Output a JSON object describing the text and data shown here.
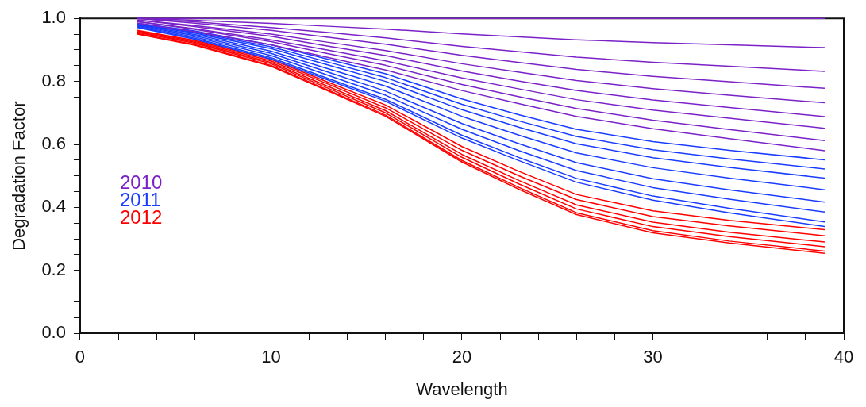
{
  "chart_data": {
    "type": "line",
    "xlabel": "Wavelength",
    "ylabel": "Degradation Factor",
    "x": [
      3,
      6,
      10,
      13,
      16,
      20,
      23,
      26,
      30,
      34,
      39
    ],
    "xlim": [
      0,
      40
    ],
    "xticks": [
      0,
      {
        "value": 2,
        "label": null
      },
      {
        "value": 4,
        "label": null
      },
      {
        "value": 6,
        "label": null
      },
      {
        "value": 8,
        "label": null
      },
      10,
      {
        "value": 12,
        "label": null
      },
      {
        "value": 14,
        "label": null
      },
      {
        "value": 16,
        "label": null
      },
      {
        "value": 18,
        "label": null
      },
      20,
      {
        "value": 22,
        "label": null
      },
      {
        "value": 24,
        "label": null
      },
      {
        "value": 26,
        "label": null
      },
      {
        "value": 28,
        "label": null
      },
      30,
      {
        "value": 32,
        "label": null
      },
      {
        "value": 34,
        "label": null
      },
      {
        "value": 36,
        "label": null
      },
      {
        "value": 38,
        "label": null
      },
      40
    ],
    "ylim": [
      0,
      1
    ],
    "yticks": [
      {
        "value": 0,
        "label": "0.0"
      },
      {
        "value": 0.05,
        "label": null
      },
      {
        "value": 0.1,
        "label": null
      },
      {
        "value": 0.15,
        "label": null
      },
      {
        "value": 0.2,
        "label": "0.2"
      },
      {
        "value": 0.25,
        "label": null
      },
      {
        "value": 0.3,
        "label": null
      },
      {
        "value": 0.35,
        "label": null
      },
      {
        "value": 0.4,
        "label": "0.4"
      },
      {
        "value": 0.45,
        "label": null
      },
      {
        "value": 0.5,
        "label": null
      },
      {
        "value": 0.55,
        "label": null
      },
      {
        "value": 0.6,
        "label": "0.6"
      },
      {
        "value": 0.65,
        "label": null
      },
      {
        "value": 0.7,
        "label": null
      },
      {
        "value": 0.75,
        "label": null
      },
      {
        "value": 0.8,
        "label": "0.8"
      },
      {
        "value": 0.85,
        "label": null
      },
      {
        "value": 0.9,
        "label": null
      },
      {
        "value": 0.95,
        "label": null
      },
      {
        "value": 1,
        "label": "1.0"
      }
    ],
    "grid": false,
    "legend": "left",
    "series": [
      {
        "color": "#7a22c8",
        "values": [
          1,
          1,
          1,
          1,
          1,
          1,
          1,
          1,
          1,
          1,
          1
        ]
      },
      {
        "name": "2010",
        "color": "#7a22c8",
        "values": [
          1,
          0.994,
          0.984,
          0.975,
          0.966,
          0.951,
          0.941,
          0.932,
          0.923,
          0.916,
          0.907
        ]
      },
      {
        "color": "#7a22c8",
        "values": [
          1,
          0.989,
          0.971,
          0.955,
          0.938,
          0.911,
          0.894,
          0.877,
          0.861,
          0.848,
          0.832
        ]
      },
      {
        "color": "#7a22c8",
        "values": [
          1,
          0.985,
          0.962,
          0.94,
          0.918,
          0.883,
          0.86,
          0.838,
          0.816,
          0.799,
          0.778
        ]
      },
      {
        "color": "#7a22c8",
        "values": [
          0.995,
          0.977,
          0.95,
          0.924,
          0.898,
          0.856,
          0.829,
          0.803,
          0.777,
          0.756,
          0.732
        ]
      },
      {
        "color": "#7a22c8",
        "values": [
          0.995,
          0.974,
          0.943,
          0.912,
          0.882,
          0.833,
          0.801,
          0.771,
          0.741,
          0.717,
          0.688
        ]
      },
      {
        "color": "#7a22c8",
        "values": [
          0.99,
          0.967,
          0.932,
          0.899,
          0.865,
          0.811,
          0.776,
          0.742,
          0.709,
          0.683,
          0.651
        ]
      },
      {
        "color": "#7a22c8",
        "values": [
          0.99,
          0.965,
          0.926,
          0.888,
          0.851,
          0.79,
          0.751,
          0.714,
          0.677,
          0.647,
          0.612
        ]
      },
      {
        "color": "#7a22c8",
        "values": [
          0.985,
          0.958,
          0.916,
          0.876,
          0.836,
          0.771,
          0.729,
          0.689,
          0.65,
          0.618,
          0.58
        ]
      },
      {
        "name": "2011",
        "color": "#1a3cff",
        "values": [
          0.985,
          0.96,
          0.916,
          0.87,
          0.824,
          0.744,
          0.694,
          0.648,
          0.609,
          0.581,
          0.551
        ]
      },
      {
        "color": "#1a3cff",
        "values": [
          0.983,
          0.956,
          0.91,
          0.861,
          0.812,
          0.727,
          0.674,
          0.625,
          0.583,
          0.554,
          0.522
        ]
      },
      {
        "color": "#1a3cff",
        "values": [
          0.981,
          0.953,
          0.904,
          0.852,
          0.8,
          0.71,
          0.654,
          0.602,
          0.558,
          0.527,
          0.493
        ]
      },
      {
        "color": "#1a3cff",
        "values": [
          0.979,
          0.949,
          0.896,
          0.84,
          0.785,
          0.689,
          0.629,
          0.573,
          0.526,
          0.493,
          0.456
        ]
      },
      {
        "color": "#1a3cff",
        "values": [
          0.977,
          0.945,
          0.889,
          0.829,
          0.769,
          0.666,
          0.602,
          0.542,
          0.491,
          0.456,
          0.417
        ]
      },
      {
        "color": "#1a3cff",
        "values": [
          0.975,
          0.941,
          0.882,
          0.819,
          0.756,
          0.648,
          0.58,
          0.517,
          0.463,
          0.426,
          0.385
        ]
      },
      {
        "color": "#1a3cff",
        "values": [
          0.973,
          0.937,
          0.875,
          0.809,
          0.743,
          0.629,
          0.558,
          0.492,
          0.436,
          0.397,
          0.354
        ]
      },
      {
        "color": "#1a3cff",
        "values": [
          0.971,
          0.934,
          0.871,
          0.804,
          0.737,
          0.62,
          0.548,
          0.48,
          0.423,
          0.383,
          0.339
        ]
      },
      {
        "name": "2012",
        "color": "#ff0000",
        "values": [
          0.962,
          0.93,
          0.87,
          0.797,
          0.725,
          0.593,
          0.514,
          0.441,
          0.389,
          0.359,
          0.329
        ]
      },
      {
        "color": "#ff0000",
        "values": [
          0.96,
          0.927,
          0.865,
          0.791,
          0.716,
          0.581,
          0.5,
          0.425,
          0.371,
          0.341,
          0.31
        ]
      },
      {
        "color": "#ff0000",
        "values": [
          0.957,
          0.924,
          0.86,
          0.784,
          0.707,
          0.568,
          0.485,
          0.408,
          0.353,
          0.321,
          0.29
        ]
      },
      {
        "color": "#ff0000",
        "values": [
          0.955,
          0.921,
          0.856,
          0.778,
          0.7,
          0.559,
          0.474,
          0.395,
          0.339,
          0.307,
          0.275
        ]
      },
      {
        "color": "#ff0000",
        "values": [
          0.952,
          0.917,
          0.851,
          0.772,
          0.693,
          0.549,
          0.463,
          0.383,
          0.326,
          0.293,
          0.261
        ]
      },
      {
        "color": "#ff0000",
        "values": [
          0.95,
          0.915,
          0.848,
          0.769,
          0.689,
          0.544,
          0.457,
          0.377,
          0.319,
          0.287,
          0.254
        ]
      }
    ]
  }
}
